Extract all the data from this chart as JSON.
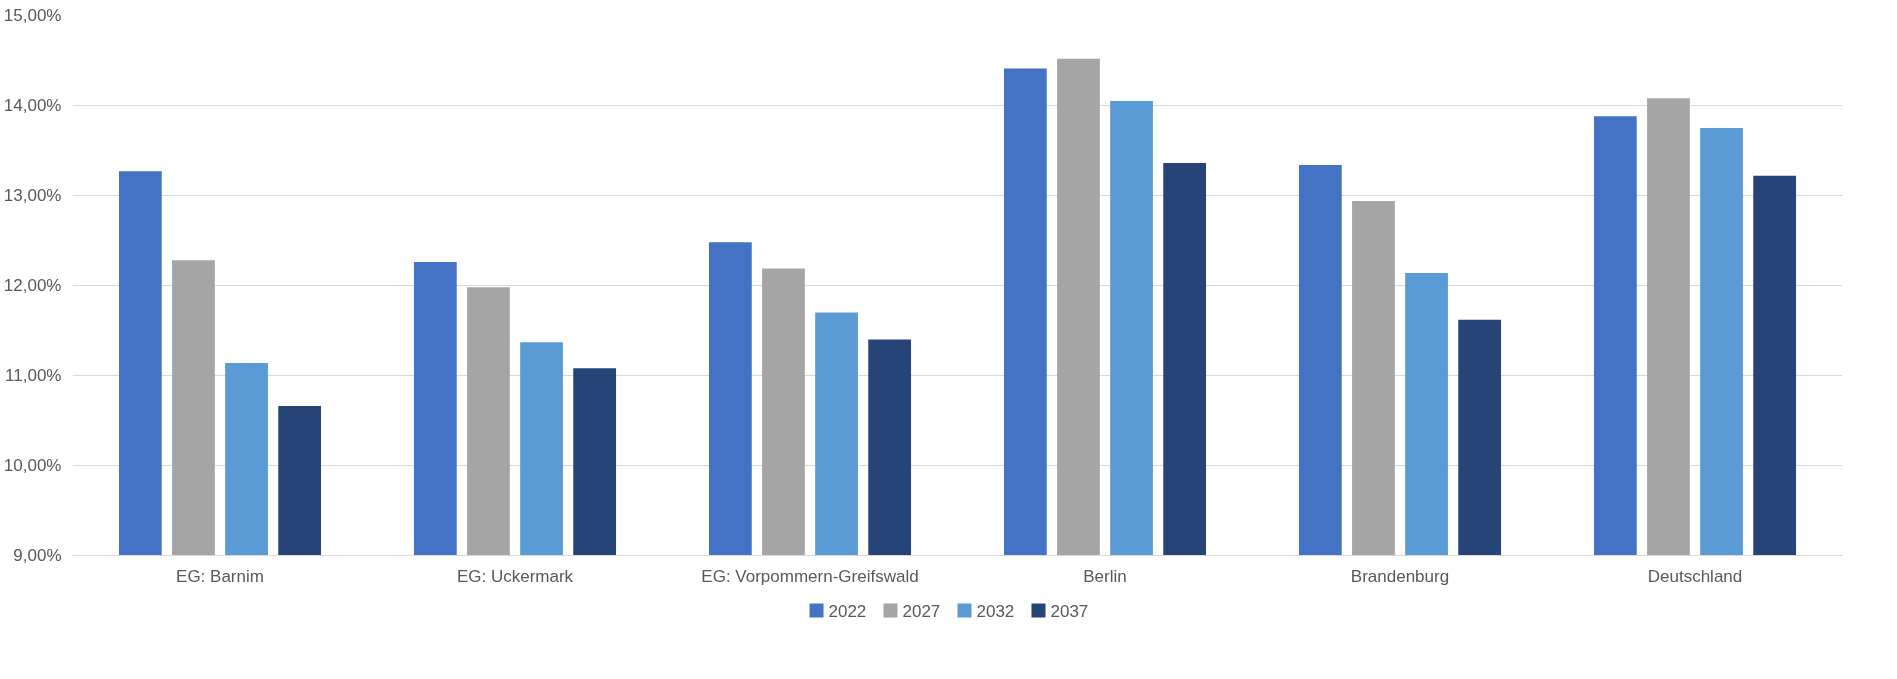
{
  "chart_data": {
    "type": "bar",
    "categories": [
      "EG: Barnim",
      "EG: Uckermark",
      "EG: Vorpommern-Greifswald",
      "Berlin",
      "Brandenburg",
      "Deutschland"
    ],
    "series": [
      {
        "name": "2022",
        "color": "#4472c4",
        "values": [
          13.27,
          12.26,
          12.48,
          14.41,
          13.34,
          13.88
        ]
      },
      {
        "name": "2027",
        "color": "#a5a5a5",
        "values": [
          12.28,
          11.98,
          12.19,
          14.52,
          12.94,
          14.08
        ]
      },
      {
        "name": "2032",
        "color": "#5b9bd5",
        "values": [
          11.14,
          11.37,
          11.7,
          14.05,
          12.14,
          13.75
        ]
      },
      {
        "name": "2037",
        "color": "#264478",
        "values": [
          10.66,
          11.08,
          11.4,
          13.36,
          11.62,
          13.22
        ]
      }
    ],
    "ylim": [
      9,
      15
    ],
    "yticks": [
      {
        "value": 9,
        "label": "9,00%"
      },
      {
        "value": 10,
        "label": "10,00%"
      },
      {
        "value": 11,
        "label": "11,00%"
      },
      {
        "value": 12,
        "label": "12,00%"
      },
      {
        "value": 13,
        "label": "13,00%"
      },
      {
        "value": 14,
        "label": "14,00%"
      },
      {
        "value": 15,
        "label": "15,00%"
      }
    ],
    "grid": "y",
    "legend": "bottom"
  }
}
